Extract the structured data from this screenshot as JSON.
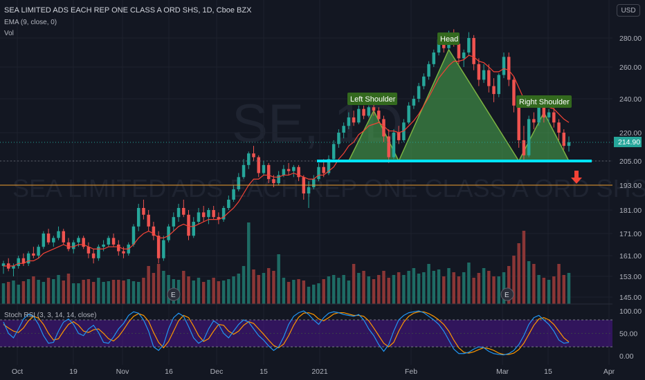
{
  "header": {
    "title": "SEA LIMITED ADS EACH REP ONE CLASS A ORD SHS, 1D, Cboe BZX",
    "ema_label": "EMA (9, close, 0)",
    "vol_label": "Vol",
    "currency": "USD"
  },
  "watermark": {
    "symbol": "SE, 1D",
    "name": "SEA LIMITED ADS EACH REP ONE CLASS A ORD SHS"
  },
  "price_axis": {
    "ticks": [
      "280.00",
      "260.00",
      "240.00",
      "220.00",
      "205.00",
      "193.00",
      "181.00",
      "171.00",
      "161.00",
      "153.00",
      "145.00"
    ],
    "last_price_label": "214.90"
  },
  "time_axis": {
    "ticks": [
      "Oct",
      "19",
      "Nov",
      "16",
      "Dec",
      "15",
      "2021",
      "Feb",
      "Mar",
      "15",
      "Apr"
    ]
  },
  "stoch": {
    "label": "Stoch RSI (3, 3, 14, 14, close)",
    "ticks": [
      "100.00",
      "50.00",
      "0.00"
    ]
  },
  "pattern": {
    "left_shoulder": "Left Shoulder",
    "head": "Head",
    "right_shoulder": "Right Shoulder"
  },
  "earnings_marker": "E",
  "colors": {
    "background": "#131722",
    "up": "#26a69a",
    "down": "#ef5350",
    "ema": "#f44336",
    "neckline": "#00e5ff",
    "support": "#f0a030",
    "pattern_fill": "#4caf50",
    "stoch_k": "#2196f3",
    "stoch_d": "#ff9800",
    "stoch_band": "#4a148c"
  },
  "chart_data": {
    "type": "candlestick",
    "title": "SEA LIMITED ADS EACH REP ONE CLASS A ORD SHS, 1D, Cboe BZX",
    "candles": [
      [
        157,
        159,
        154,
        158
      ],
      [
        158,
        160,
        155,
        156
      ],
      [
        156,
        158,
        153,
        157
      ],
      [
        157,
        161,
        156,
        160
      ],
      [
        160,
        162,
        157,
        158
      ],
      [
        158,
        163,
        157,
        162
      ],
      [
        162,
        165,
        160,
        161
      ],
      [
        161,
        166,
        160,
        165
      ],
      [
        165,
        172,
        164,
        171
      ],
      [
        171,
        173,
        166,
        167
      ],
      [
        167,
        170,
        165,
        169
      ],
      [
        169,
        174,
        168,
        172
      ],
      [
        172,
        173,
        166,
        167
      ],
      [
        167,
        169,
        163,
        164
      ],
      [
        164,
        168,
        162,
        167
      ],
      [
        167,
        170,
        165,
        169
      ],
      [
        169,
        170,
        164,
        165
      ],
      [
        165,
        167,
        160,
        162
      ],
      [
        162,
        164,
        158,
        160
      ],
      [
        160,
        166,
        159,
        165
      ],
      [
        165,
        168,
        163,
        166
      ],
      [
        166,
        170,
        165,
        169
      ],
      [
        169,
        171,
        165,
        166
      ],
      [
        166,
        168,
        161,
        163
      ],
      [
        163,
        165,
        160,
        162
      ],
      [
        162,
        167,
        161,
        166
      ],
      [
        166,
        175,
        165,
        174
      ],
      [
        174,
        184,
        172,
        182
      ],
      [
        182,
        186,
        177,
        179
      ],
      [
        179,
        181,
        172,
        174
      ],
      [
        174,
        176,
        168,
        170
      ],
      [
        170,
        172,
        158,
        160
      ],
      [
        160,
        170,
        159,
        168
      ],
      [
        168,
        175,
        167,
        174
      ],
      [
        174,
        180,
        172,
        178
      ],
      [
        178,
        184,
        176,
        182
      ],
      [
        182,
        186,
        178,
        179
      ],
      [
        179,
        181,
        168,
        170
      ],
      [
        170,
        178,
        169,
        176
      ],
      [
        176,
        182,
        175,
        180
      ],
      [
        180,
        183,
        176,
        178
      ],
      [
        178,
        182,
        175,
        181
      ],
      [
        181,
        183,
        177,
        178
      ],
      [
        178,
        180,
        175,
        177
      ],
      [
        177,
        183,
        176,
        182
      ],
      [
        182,
        188,
        181,
        186
      ],
      [
        186,
        193,
        185,
        191
      ],
      [
        191,
        199,
        190,
        197
      ],
      [
        197,
        206,
        196,
        203
      ],
      [
        203,
        210,
        201,
        209
      ],
      [
        209,
        213,
        205,
        207
      ],
      [
        207,
        208,
        197,
        199
      ],
      [
        199,
        205,
        198,
        203
      ],
      [
        203,
        204,
        194,
        196
      ],
      [
        196,
        198,
        192,
        194
      ],
      [
        194,
        200,
        193,
        198
      ],
      [
        198,
        203,
        197,
        201
      ],
      [
        201,
        204,
        198,
        200
      ],
      [
        200,
        203,
        197,
        202
      ],
      [
        202,
        203,
        195,
        197
      ],
      [
        197,
        198,
        186,
        189
      ],
      [
        189,
        195,
        182,
        192
      ],
      [
        192,
        198,
        191,
        196
      ],
      [
        196,
        204,
        195,
        202
      ],
      [
        202,
        206,
        197,
        199
      ],
      [
        199,
        208,
        198,
        206
      ],
      [
        206,
        216,
        205,
        214
      ],
      [
        214,
        222,
        212,
        220
      ],
      [
        220,
        226,
        217,
        224
      ],
      [
        224,
        232,
        222,
        229
      ],
      [
        229,
        233,
        224,
        226
      ],
      [
        226,
        236,
        225,
        234
      ],
      [
        234,
        236,
        228,
        230
      ],
      [
        230,
        236,
        229,
        235
      ],
      [
        235,
        237,
        230,
        233
      ],
      [
        233,
        235,
        226,
        228
      ],
      [
        228,
        230,
        215,
        218
      ],
      [
        218,
        222,
        204,
        207
      ],
      [
        207,
        222,
        206,
        220
      ],
      [
        220,
        224,
        214,
        216
      ],
      [
        216,
        228,
        215,
        226
      ],
      [
        226,
        238,
        225,
        236
      ],
      [
        236,
        242,
        234,
        240
      ],
      [
        240,
        250,
        238,
        248
      ],
      [
        248,
        256,
        246,
        254
      ],
      [
        254,
        264,
        252,
        262
      ],
      [
        262,
        272,
        260,
        270
      ],
      [
        270,
        282,
        268,
        279
      ],
      [
        279,
        283,
        270,
        273
      ],
      [
        273,
        285,
        272,
        282
      ],
      [
        282,
        286,
        274,
        276
      ],
      [
        276,
        280,
        262,
        266
      ],
      [
        266,
        272,
        260,
        270
      ],
      [
        270,
        284,
        268,
        280
      ],
      [
        280,
        282,
        258,
        262
      ],
      [
        262,
        266,
        248,
        252
      ],
      [
        252,
        262,
        250,
        258
      ],
      [
        258,
        262,
        244,
        248
      ],
      [
        248,
        253,
        238,
        243
      ],
      [
        243,
        256,
        241,
        255
      ],
      [
        255,
        270,
        253,
        267
      ],
      [
        267,
        270,
        248,
        252
      ],
      [
        252,
        254,
        232,
        236
      ],
      [
        236,
        238,
        212,
        216
      ],
      [
        216,
        224,
        205,
        208
      ],
      [
        208,
        230,
        207,
        228
      ],
      [
        228,
        232,
        222,
        226
      ],
      [
        226,
        238,
        224,
        236
      ],
      [
        236,
        238,
        226,
        229
      ],
      [
        229,
        234,
        226,
        232
      ],
      [
        232,
        236,
        223,
        226
      ],
      [
        226,
        228,
        216,
        220
      ],
      [
        220,
        222,
        211,
        213
      ],
      [
        213,
        218,
        210,
        214.9
      ]
    ],
    "ema_9": [
      157,
      157,
      157,
      158,
      158,
      159,
      159,
      160,
      162,
      163,
      164,
      165,
      166,
      165,
      165,
      166,
      166,
      165,
      164,
      164,
      164,
      165,
      165,
      165,
      164,
      164,
      166,
      169,
      171,
      172,
      171,
      169,
      169,
      170,
      172,
      174,
      175,
      174,
      174,
      175,
      176,
      177,
      177,
      177,
      178,
      180,
      182,
      185,
      189,
      193,
      196,
      196,
      198,
      198,
      197,
      197,
      198,
      198,
      199,
      198,
      197,
      196,
      196,
      198,
      198,
      200,
      202,
      206,
      209,
      213,
      215,
      219,
      221,
      224,
      225,
      226,
      224,
      221,
      221,
      220,
      221,
      224,
      227,
      231,
      236,
      241,
      247,
      253,
      257,
      261,
      264,
      264,
      265,
      268,
      267,
      264,
      263,
      260,
      257,
      257,
      259,
      258,
      254,
      247,
      240,
      238,
      236,
      236,
      235,
      235,
      234,
      231,
      228,
      226
    ],
    "volume": [
      30,
      32,
      34,
      28,
      33,
      36,
      40,
      35,
      32,
      38,
      36,
      42,
      34,
      44,
      30,
      30,
      35,
      36,
      32,
      38,
      32,
      33,
      35,
      35,
      34,
      36,
      33,
      32,
      38,
      55,
      45,
      58,
      48,
      42,
      36,
      35,
      48,
      40,
      34,
      38,
      32,
      35,
      38,
      33,
      34,
      36,
      40,
      44,
      55,
      118,
      50,
      42,
      45,
      52,
      48,
      72,
      38,
      32,
      35,
      36,
      34,
      25,
      28,
      30,
      36,
      40,
      42,
      38,
      42,
      34,
      58,
      45,
      48,
      40,
      36,
      42,
      48,
      38,
      42,
      46,
      42,
      48,
      52,
      44,
      46,
      58,
      48,
      50,
      40,
      52,
      46,
      40,
      46,
      60,
      38,
      45,
      52,
      48,
      40,
      40,
      46,
      55,
      70,
      88,
      106,
      62,
      58,
      42,
      38,
      35,
      40,
      58,
      42,
      45
    ],
    "volume_up": [
      true,
      false,
      true,
      true,
      false,
      true,
      false,
      true,
      true,
      false,
      true,
      true,
      false,
      false,
      true,
      true,
      false,
      false,
      false,
      true,
      true,
      true,
      false,
      false,
      false,
      true,
      true,
      true,
      false,
      false,
      false,
      false,
      true,
      true,
      true,
      true,
      false,
      false,
      true,
      true,
      false,
      true,
      false,
      false,
      true,
      true,
      true,
      true,
      true,
      true,
      false,
      false,
      true,
      false,
      false,
      true,
      true,
      false,
      true,
      false,
      false,
      true,
      true,
      true,
      false,
      true,
      true,
      true,
      true,
      true,
      false,
      true,
      false,
      true,
      false,
      false,
      false,
      false,
      true,
      false,
      true,
      true,
      true,
      true,
      true,
      true,
      true,
      true,
      false,
      true,
      false,
      false,
      true,
      true,
      false,
      false,
      true,
      false,
      false,
      true,
      true,
      false,
      false,
      false,
      false,
      true,
      false,
      true,
      false,
      true,
      false,
      false,
      false,
      true
    ],
    "stoch_k": [
      75,
      50,
      40,
      60,
      82,
      92,
      88,
      70,
      45,
      28,
      30,
      55,
      75,
      82,
      70,
      50,
      45,
      60,
      68,
      52,
      30,
      28,
      42,
      60,
      72,
      90,
      98,
      95,
      80,
      55,
      20,
      12,
      25,
      60,
      85,
      95,
      88,
      65,
      40,
      28,
      35,
      60,
      78,
      70,
      50,
      40,
      55,
      70,
      80,
      75,
      60,
      45,
      35,
      22,
      12,
      20,
      42,
      70,
      88,
      96,
      100,
      92,
      80,
      70,
      85,
      95,
      98,
      96,
      92,
      90,
      88,
      92,
      80,
      60,
      45,
      25,
      10,
      25,
      55,
      80,
      90,
      96,
      98,
      100,
      96,
      88,
      80,
      70,
      55,
      35,
      15,
      5,
      5,
      8,
      15,
      20,
      18,
      10,
      5,
      3,
      2,
      5,
      12,
      25,
      45,
      70,
      85,
      90,
      80,
      70,
      55,
      35,
      28,
      30
    ],
    "stoch_d": [
      70,
      62,
      55,
      52,
      62,
      78,
      88,
      84,
      70,
      50,
      35,
      38,
      55,
      70,
      76,
      68,
      55,
      52,
      58,
      60,
      50,
      38,
      33,
      43,
      58,
      75,
      88,
      94,
      90,
      77,
      52,
      30,
      18,
      32,
      55,
      78,
      90,
      85,
      66,
      45,
      32,
      38,
      55,
      70,
      68,
      55,
      48,
      55,
      68,
      76,
      72,
      60,
      48,
      35,
      23,
      18,
      26,
      45,
      68,
      86,
      95,
      96,
      92,
      82,
      78,
      85,
      93,
      96,
      96,
      93,
      90,
      90,
      88,
      78,
      62,
      45,
      28,
      20,
      30,
      55,
      75,
      88,
      95,
      98,
      98,
      94,
      88,
      80,
      70,
      55,
      35,
      18,
      8,
      6,
      9,
      14,
      18,
      16,
      12,
      6,
      3,
      3,
      6,
      14,
      28,
      48,
      68,
      82,
      85,
      80,
      70,
      55,
      40,
      31
    ],
    "neckline": 205,
    "support": 193,
    "ylabel": "USD",
    "xlabel": ""
  }
}
